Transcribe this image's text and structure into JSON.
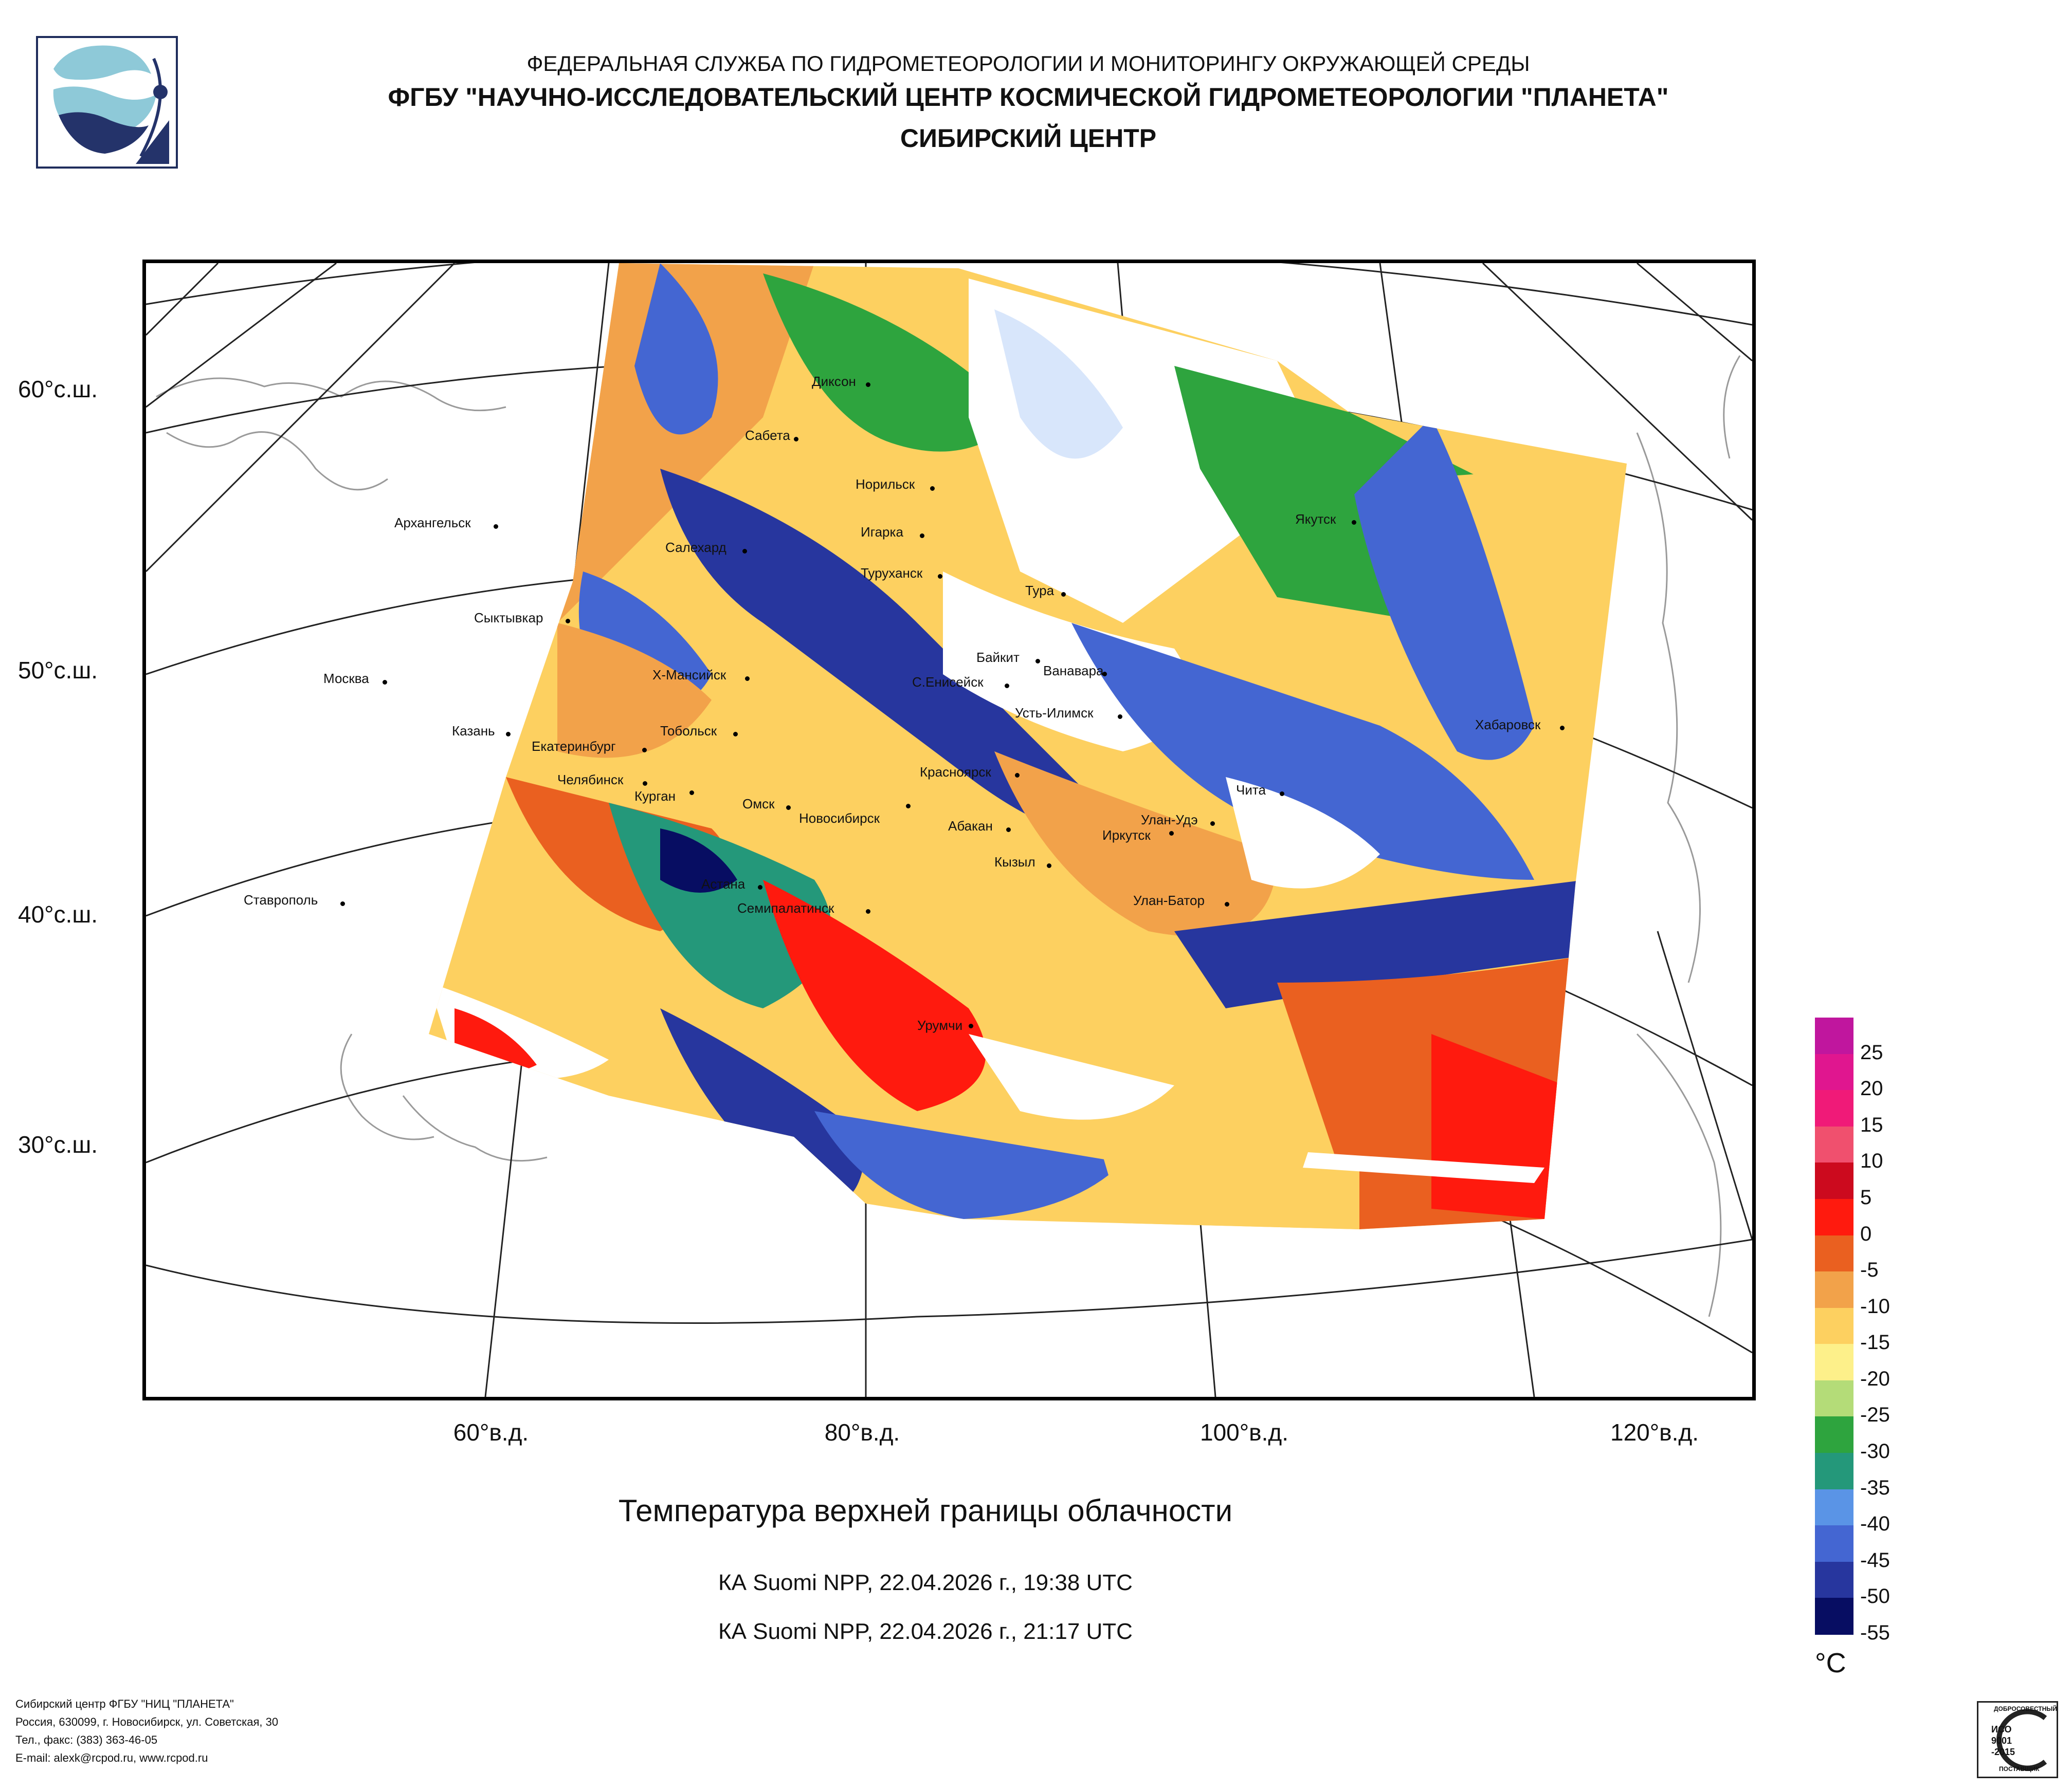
{
  "header": {
    "line1": "ФЕДЕРАЛЬНАЯ СЛУЖБА ПО ГИДРОМЕТЕОРОЛОГИИ И МОНИТОРИНГУ ОКРУЖАЮЩЕЙ СРЕДЫ",
    "line2": "ФГБУ \"НАУЧНО-ИССЛЕДОВАТЕЛЬСКИЙ ЦЕНТР КОСМИЧЕСКОЙ ГИДРОМЕТЕОРОЛОГИИ \"ПЛАНЕТА\"",
    "line3": "СИБИРСКИЙ ЦЕНТР"
  },
  "map": {
    "latitude_labels": [
      "60°с.ш.",
      "50°с.ш.",
      "40°с.ш.",
      "30°с.ш."
    ],
    "longitude_labels": [
      "60°в.д.",
      "80°в.д.",
      "100°в.д.",
      "120°в.д."
    ],
    "cities": [
      {
        "name": "Диксон"
      },
      {
        "name": "Сабета"
      },
      {
        "name": "Норильск"
      },
      {
        "name": "Игарка"
      },
      {
        "name": "Салехард"
      },
      {
        "name": "Туруханск"
      },
      {
        "name": "Тура"
      },
      {
        "name": "Якутск"
      },
      {
        "name": "Архангельск"
      },
      {
        "name": "Сыктывкар"
      },
      {
        "name": "Москва"
      },
      {
        "name": "Казань"
      },
      {
        "name": "Х-Мансийск"
      },
      {
        "name": "Байкит"
      },
      {
        "name": "Ванавара"
      },
      {
        "name": "С.Енисейск"
      },
      {
        "name": "Усть-Илимск"
      },
      {
        "name": "Хабаровск"
      },
      {
        "name": "Екатеринбург"
      },
      {
        "name": "Тобольск"
      },
      {
        "name": "Челябинск"
      },
      {
        "name": "Курган"
      },
      {
        "name": "Красноярск"
      },
      {
        "name": "Омск"
      },
      {
        "name": "Новосибирск"
      },
      {
        "name": "Чита"
      },
      {
        "name": "Абакан"
      },
      {
        "name": "Улан-Удэ"
      },
      {
        "name": "Иркутск"
      },
      {
        "name": "Кызыл"
      },
      {
        "name": "Астана"
      },
      {
        "name": "Ставрополь"
      },
      {
        "name": "Семипалатинск"
      },
      {
        "name": "Улан-Батор"
      },
      {
        "name": "Урумчи"
      }
    ]
  },
  "titles": {
    "main": "Температура верхней границы облачности",
    "pass1": "КА Suomi NPP, 22.04.2026 г., 19:38 UTC",
    "pass2": "КА Suomi NPP, 22.04.2026 г., 21:17 UTC"
  },
  "legend": {
    "unit": "°C",
    "labels": [
      "25",
      "20",
      "15",
      "10",
      "5",
      "0",
      "-5",
      "-10",
      "-15",
      "-20",
      "-25",
      "-30",
      "-35",
      "-40",
      "-45",
      "-50",
      "-55"
    ],
    "colors": [
      "#c0169e",
      "#e0168f",
      "#f01a78",
      "#f0506e",
      "#cc0a1e",
      "#ff1a0e",
      "#ea6020",
      "#f2a24a",
      "#fdd060",
      "#fdf08a",
      "#b4dc78",
      "#2ea43e",
      "#24987a",
      "#5a94e6",
      "#4466d2",
      "#27369e",
      "#070d62"
    ]
  },
  "footer": {
    "line1": "Сибирский центр ФГБУ \"НИЦ \"ПЛАНЕТА\"",
    "line2": "Россия, 630099, г. Новосибирск, ул. Советская, 30",
    "line3": "Тел., факс: (383) 363-46-05",
    "line4": "E-mail: alexk@rcpod.ru, www.rcpod.ru"
  },
  "iso_badge": {
    "top": "ДОБРОСОВЕСТНЫЙ",
    "mid1": "ИСО",
    "mid2": "9001",
    "mid3": "-2015",
    "bottom": "ПОСТАВЩИК"
  }
}
